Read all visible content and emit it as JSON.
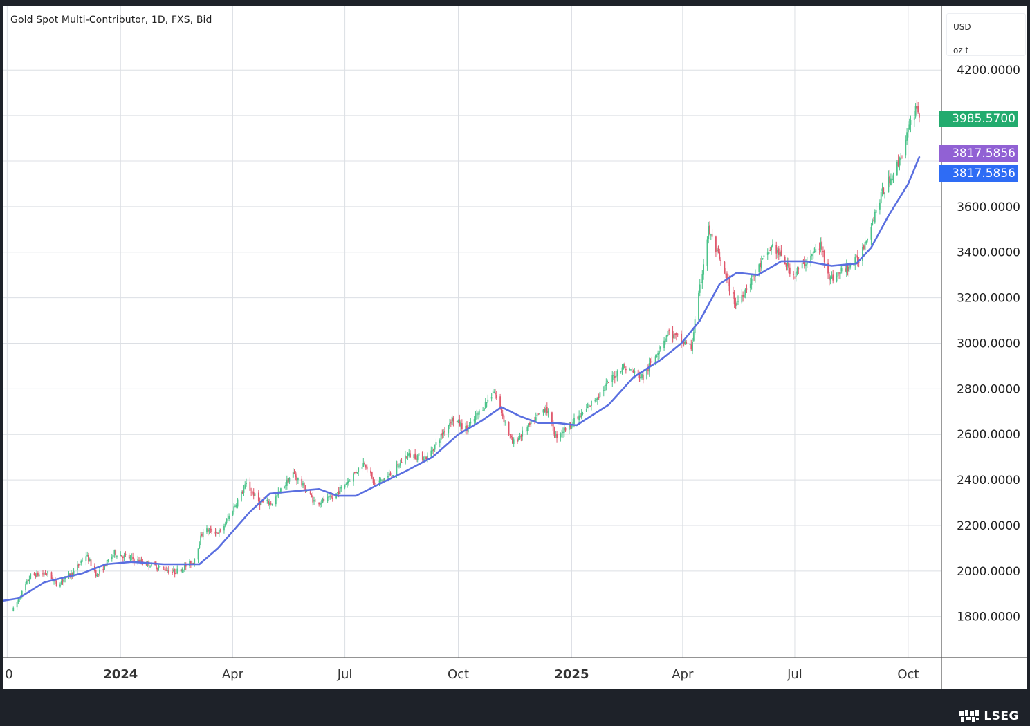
{
  "chart_data": {
    "type": "line",
    "title": "Gold Spot Multi-Contributor, 1D, FXS, Bid",
    "units": [
      "USD",
      "oz t"
    ],
    "ylim": [
      1620,
      4480
    ],
    "y_ticks": [
      1800,
      2000,
      2200,
      2400,
      2600,
      2800,
      3000,
      3200,
      3400,
      3600,
      4200
    ],
    "y_tick_labels": [
      "1800.0000",
      "2000.0000",
      "2200.0000",
      "2400.0000",
      "2600.0000",
      "2800.0000",
      "3000.0000",
      "3200.0000",
      "3400.0000",
      "3600.0000",
      "4200.0000"
    ],
    "x_range": [
      "2023-09-28",
      "2025-10-28"
    ],
    "x_ticks": [
      {
        "date": "2023-10-01",
        "label": "0",
        "bold": false
      },
      {
        "date": "2024-01-01",
        "label": "2024",
        "bold": true
      },
      {
        "date": "2024-04-01",
        "label": "Apr",
        "bold": false
      },
      {
        "date": "2024-07-01",
        "label": "Jul",
        "bold": false
      },
      {
        "date": "2024-10-01",
        "label": "Oct",
        "bold": false
      },
      {
        "date": "2025-01-01",
        "label": "2025",
        "bold": true
      },
      {
        "date": "2025-04-01",
        "label": "Apr",
        "bold": false
      },
      {
        "date": "2025-07-01",
        "label": "Jul",
        "bold": false
      },
      {
        "date": "2025-10-01",
        "label": "Oct",
        "bold": false
      }
    ],
    "price_tags": [
      {
        "label": "3985.5700",
        "value": 3985.57,
        "color": "#22ab6e"
      },
      {
        "label": "3817.5856",
        "value": 3817.5856,
        "color": "#9161d4"
      },
      {
        "label": "3817.5856",
        "value": 3817.5856,
        "color": "#2e6cf5"
      }
    ],
    "series": [
      {
        "kind": "candlestick",
        "up_color": "#4cc38a",
        "down_color": "#e0576b",
        "price_points": [
          [
            "2023-10-06",
            1830
          ],
          [
            "2023-10-20",
            1980
          ],
          [
            "2023-11-03",
            1990
          ],
          [
            "2023-11-10",
            1940
          ],
          [
            "2023-11-24",
            1995
          ],
          [
            "2023-12-01",
            2050
          ],
          [
            "2023-12-04",
            2070
          ],
          [
            "2023-12-13",
            1980
          ],
          [
            "2023-12-27",
            2080
          ],
          [
            "2024-01-12",
            2050
          ],
          [
            "2024-02-14",
            1995
          ],
          [
            "2024-02-29",
            2040
          ],
          [
            "2024-03-08",
            2180
          ],
          [
            "2024-03-22",
            2170
          ],
          [
            "2024-04-12",
            2380
          ],
          [
            "2024-04-23",
            2300
          ],
          [
            "2024-05-03",
            2300
          ],
          [
            "2024-05-20",
            2430
          ],
          [
            "2024-06-07",
            2300
          ],
          [
            "2024-06-21",
            2320
          ],
          [
            "2024-07-17",
            2480
          ],
          [
            "2024-07-25",
            2380
          ],
          [
            "2024-08-09",
            2430
          ],
          [
            "2024-08-20",
            2510
          ],
          [
            "2024-09-06",
            2500
          ],
          [
            "2024-09-26",
            2670
          ],
          [
            "2024-10-08",
            2620
          ],
          [
            "2024-10-30",
            2790
          ],
          [
            "2024-11-14",
            2560
          ],
          [
            "2024-11-25",
            2620
          ],
          [
            "2024-12-11",
            2720
          ],
          [
            "2024-12-19",
            2590
          ],
          [
            "2025-01-10",
            2690
          ],
          [
            "2025-02-11",
            2900
          ],
          [
            "2025-02-28",
            2850
          ],
          [
            "2025-03-20",
            3050
          ],
          [
            "2025-04-08",
            2980
          ],
          [
            "2025-04-22",
            3500
          ],
          [
            "2025-05-14",
            3170
          ],
          [
            "2025-06-13",
            3430
          ],
          [
            "2025-06-30",
            3300
          ],
          [
            "2025-07-22",
            3430
          ],
          [
            "2025-07-30",
            3280
          ],
          [
            "2025-08-22",
            3370
          ],
          [
            "2025-09-09",
            3650
          ],
          [
            "2025-09-23",
            3790
          ],
          [
            "2025-10-08",
            4050
          ],
          [
            "2025-10-10",
            3985.57
          ]
        ]
      },
      {
        "kind": "moving-average",
        "color": "#5a6fe0",
        "points": [
          [
            "2023-09-28",
            1870
          ],
          [
            "2023-10-10",
            1880
          ],
          [
            "2023-10-31",
            1950
          ],
          [
            "2023-11-15",
            1970
          ],
          [
            "2023-12-01",
            1990
          ],
          [
            "2023-12-20",
            2030
          ],
          [
            "2024-01-10",
            2040
          ],
          [
            "2024-02-05",
            2030
          ],
          [
            "2024-03-05",
            2030
          ],
          [
            "2024-03-20",
            2100
          ],
          [
            "2024-04-15",
            2260
          ],
          [
            "2024-05-01",
            2340
          ],
          [
            "2024-05-20",
            2350
          ],
          [
            "2024-06-10",
            2360
          ],
          [
            "2024-06-25",
            2330
          ],
          [
            "2024-07-10",
            2330
          ],
          [
            "2024-08-01",
            2390
          ],
          [
            "2024-08-20",
            2440
          ],
          [
            "2024-09-10",
            2500
          ],
          [
            "2024-10-01",
            2600
          ],
          [
            "2024-10-20",
            2660
          ],
          [
            "2024-11-05",
            2720
          ],
          [
            "2024-11-20",
            2680
          ],
          [
            "2024-12-05",
            2650
          ],
          [
            "2024-12-20",
            2650
          ],
          [
            "2025-01-05",
            2640
          ],
          [
            "2025-01-31",
            2730
          ],
          [
            "2025-02-20",
            2850
          ],
          [
            "2025-03-15",
            2930
          ],
          [
            "2025-03-31",
            3000
          ],
          [
            "2025-04-15",
            3100
          ],
          [
            "2025-05-01",
            3260
          ],
          [
            "2025-05-15",
            3310
          ],
          [
            "2025-06-01",
            3300
          ],
          [
            "2025-06-20",
            3360
          ],
          [
            "2025-07-10",
            3360
          ],
          [
            "2025-07-31",
            3340
          ],
          [
            "2025-08-20",
            3350
          ],
          [
            "2025-09-01",
            3420
          ],
          [
            "2025-09-15",
            3560
          ],
          [
            "2025-10-01",
            3700
          ],
          [
            "2025-10-10",
            3817.5856
          ]
        ]
      }
    ]
  },
  "branding": {
    "logo_text": "LSEG"
  }
}
